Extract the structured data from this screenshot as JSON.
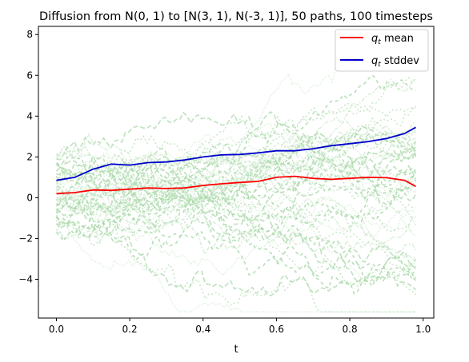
{
  "chart_data": {
    "type": "line",
    "title": "Diffusion from N(0, 1) to [N(3, 1), N(-3, 1)], 50 paths, 100 timesteps",
    "xlabel": "t",
    "ylabel": "",
    "xlim": [
      -0.049,
      1.029
    ],
    "ylim": [
      -5.9,
      8.4
    ],
    "xticks": [
      0.0,
      0.2,
      0.4,
      0.6,
      0.8,
      1.0
    ],
    "xtick_labels": [
      "0.0",
      "0.2",
      "0.4",
      "0.6",
      "0.8",
      "1.0"
    ],
    "yticks": [
      -4,
      -2,
      0,
      2,
      4,
      6,
      8
    ],
    "ytick_labels": [
      "−4",
      "−2",
      "0",
      "2",
      "4",
      "6",
      "8"
    ],
    "grid": false,
    "legend_position": "upper right",
    "series": [
      {
        "name": "q_t mean",
        "legend_label": "mean",
        "color": "#ff0000",
        "x": [
          0.0,
          0.05,
          0.1,
          0.15,
          0.2,
          0.25,
          0.3,
          0.35,
          0.4,
          0.45,
          0.5,
          0.55,
          0.6,
          0.65,
          0.7,
          0.75,
          0.8,
          0.85,
          0.9,
          0.95,
          0.98
        ],
        "y": [
          0.2,
          0.25,
          0.38,
          0.36,
          0.42,
          0.48,
          0.45,
          0.48,
          0.6,
          0.68,
          0.75,
          0.8,
          1.0,
          1.05,
          0.95,
          0.9,
          0.95,
          1.0,
          0.98,
          0.85,
          0.55
        ]
      },
      {
        "name": "q_t stddev",
        "legend_label": "stddev",
        "color": "#0000cc",
        "x": [
          0.0,
          0.05,
          0.1,
          0.15,
          0.2,
          0.25,
          0.3,
          0.35,
          0.4,
          0.45,
          0.5,
          0.55,
          0.6,
          0.65,
          0.7,
          0.75,
          0.8,
          0.85,
          0.9,
          0.95,
          0.98
        ],
        "y": [
          0.85,
          1.0,
          1.4,
          1.65,
          1.6,
          1.72,
          1.75,
          1.85,
          2.0,
          2.1,
          2.12,
          2.2,
          2.3,
          2.3,
          2.4,
          2.55,
          2.65,
          2.75,
          2.9,
          3.15,
          3.45
        ]
      }
    ],
    "paths": {
      "count": 50,
      "timesteps": 100,
      "color": "#a8d8a8",
      "x_start": 0.0,
      "x_end": 0.98,
      "y_start_range": [
        -1.8,
        2.2
      ],
      "y_end_range": [
        -5.0,
        5.3
      ]
    }
  }
}
